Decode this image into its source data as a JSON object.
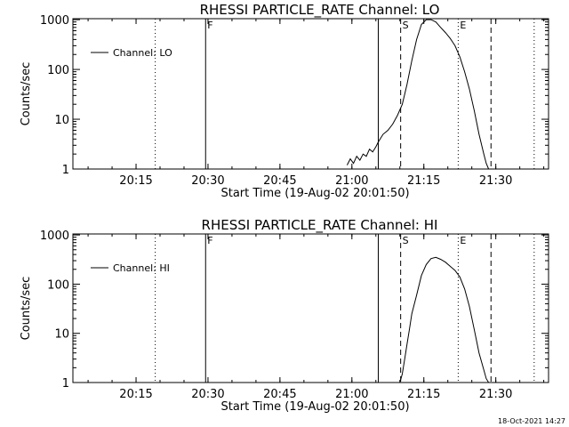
{
  "chart_data": [
    {
      "type": "line",
      "title": "RHESSI PARTICLE_RATE Channel: LO",
      "xlabel": "Start Time (19-Aug-02 20:01:50)",
      "ylabel": "Counts/sec",
      "ylog": true,
      "xlim": [
        "20:01:50",
        "21:41:00"
      ],
      "ylim": [
        1,
        1000
      ],
      "xticks": [
        "20:15",
        "20:30",
        "20:45",
        "21:00",
        "21:15",
        "21:30"
      ],
      "yticks": [
        "1",
        "10",
        "100",
        "1000"
      ],
      "legend": {
        "position": "top-left",
        "label": "Channel: LO"
      },
      "markers": [
        {
          "label": "F",
          "time": "20:29:30",
          "style": "solid"
        },
        {
          "label": "",
          "time": "21:05:30",
          "style": "solid"
        },
        {
          "label": "S",
          "time": "21:10:10",
          "style": "dashed"
        },
        {
          "label": "E",
          "time": "21:22:10",
          "style": "dotted"
        },
        {
          "label": "",
          "time": "21:29:00",
          "style": "dashed"
        },
        {
          "label": "",
          "time": "20:19:00",
          "style": "dotted"
        },
        {
          "label": "",
          "time": "21:38:00",
          "style": "dotted"
        }
      ],
      "series": [
        {
          "name": "Channel: LO",
          "x": [
            "20:59:00",
            "20:59:40",
            "21:00:20",
            "21:01:00",
            "21:01:40",
            "21:02:20",
            "21:03:00",
            "21:03:40",
            "21:04:20",
            "21:05:00",
            "21:05:30",
            "21:06:30",
            "21:07:30",
            "21:08:30",
            "21:09:30",
            "21:10:30",
            "21:11:30",
            "21:12:30",
            "21:13:30",
            "21:14:30",
            "21:15:30",
            "21:16:30",
            "21:17:30",
            "21:18:30",
            "21:19:30",
            "21:20:30",
            "21:21:30",
            "21:22:30",
            "21:23:30",
            "21:24:30",
            "21:25:30",
            "21:26:30",
            "21:27:30",
            "21:28:00",
            "21:28:30"
          ],
          "y": [
            1.2,
            1.6,
            1.3,
            1.8,
            1.5,
            2.0,
            1.8,
            2.5,
            2.2,
            2.8,
            3.5,
            5,
            6,
            8,
            12,
            20,
            50,
            150,
            400,
            800,
            1000,
            1000,
            900,
            700,
            550,
            420,
            300,
            180,
            90,
            40,
            15,
            5,
            2,
            1.3,
            1
          ]
        }
      ]
    },
    {
      "type": "line",
      "title": "RHESSI PARTICLE_RATE Channel: HI",
      "xlabel": "Start Time (19-Aug-02 20:01:50)",
      "ylabel": "Counts/sec",
      "ylog": true,
      "xlim": [
        "20:01:50",
        "21:41:00"
      ],
      "ylim": [
        1,
        1000
      ],
      "xticks": [
        "20:15",
        "20:30",
        "20:45",
        "21:00",
        "21:15",
        "21:30"
      ],
      "yticks": [
        "1",
        "10",
        "100",
        "1000"
      ],
      "legend": {
        "position": "top-left",
        "label": "Channel: HI"
      },
      "markers": [
        {
          "label": "F",
          "time": "20:29:30",
          "style": "solid"
        },
        {
          "label": "",
          "time": "21:05:30",
          "style": "solid"
        },
        {
          "label": "S",
          "time": "21:10:10",
          "style": "dashed"
        },
        {
          "label": "E",
          "time": "21:22:10",
          "style": "dotted"
        },
        {
          "label": "",
          "time": "21:29:00",
          "style": "dashed"
        },
        {
          "label": "",
          "time": "20:19:00",
          "style": "dotted"
        },
        {
          "label": "",
          "time": "21:38:00",
          "style": "dotted"
        }
      ],
      "series": [
        {
          "name": "Channel: HI",
          "x": [
            "21:10:00",
            "21:10:30",
            "21:11:00",
            "21:11:30",
            "21:12:00",
            "21:12:30",
            "21:13:30",
            "21:14:30",
            "21:15:30",
            "21:16:30",
            "21:17:30",
            "21:18:30",
            "21:19:30",
            "21:20:30",
            "21:21:30",
            "21:22:30",
            "21:23:30",
            "21:24:30",
            "21:25:30",
            "21:26:30",
            "21:27:30",
            "21:28:00",
            "21:28:30"
          ],
          "y": [
            1,
            1.5,
            3,
            6,
            12,
            25,
            60,
            150,
            250,
            330,
            350,
            320,
            280,
            230,
            190,
            140,
            80,
            35,
            12,
            4,
            1.8,
            1.2,
            1
          ]
        }
      ]
    }
  ],
  "timestamp": "18-Oct-2021 14:27"
}
